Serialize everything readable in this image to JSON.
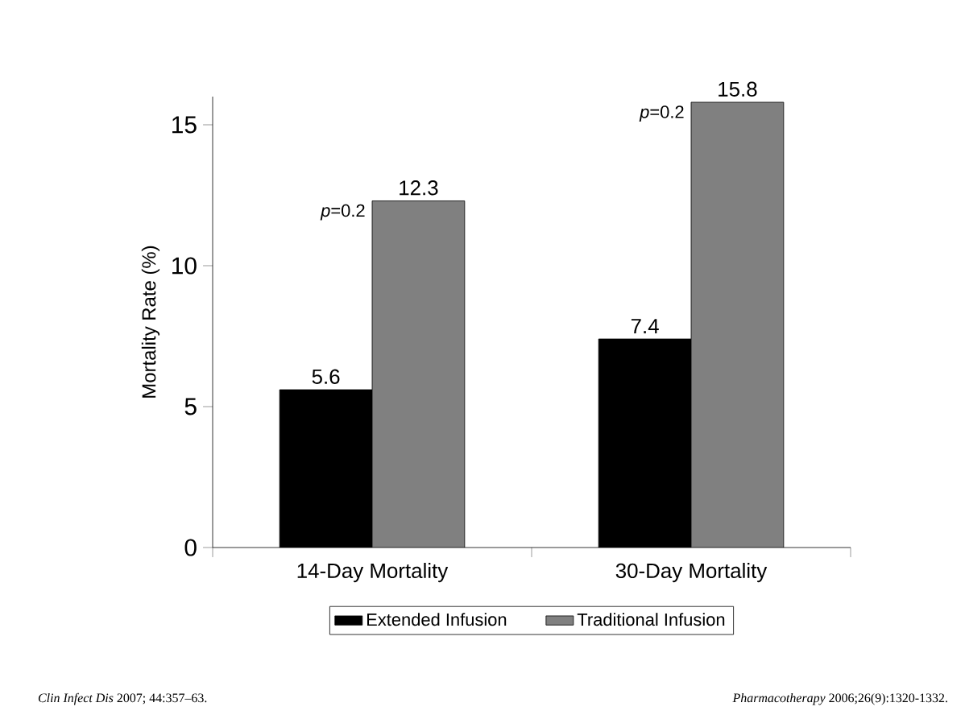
{
  "chart_data": {
    "type": "bar",
    "ylabel": "Mortality Rate (%)",
    "categories": [
      "14-Day Mortality",
      "30-Day Mortality"
    ],
    "series": [
      {
        "name": "Extended Infusion",
        "color": "#000000",
        "values": [
          5.6,
          7.4
        ]
      },
      {
        "name": "Traditional Infusion",
        "color": "#808080",
        "values": [
          12.3,
          15.8
        ]
      }
    ],
    "ylim": [
      0,
      16
    ],
    "yticks": [
      0,
      5,
      10,
      15
    ],
    "grid": false,
    "legend": "bottom",
    "data_labels": true,
    "annotations": [
      {
        "text": "*p*=0.2",
        "x": "14-Day Mortality",
        "y": 11.6
      },
      {
        "text": "*p*=0.2",
        "x": "30-Day Mortality",
        "y": 15.1
      },
      "*Clin Infect Dis* 2007; 44:357–63.",
      "*Pharmacotherapy* 2006;26(9):1320-1332."
    ]
  }
}
